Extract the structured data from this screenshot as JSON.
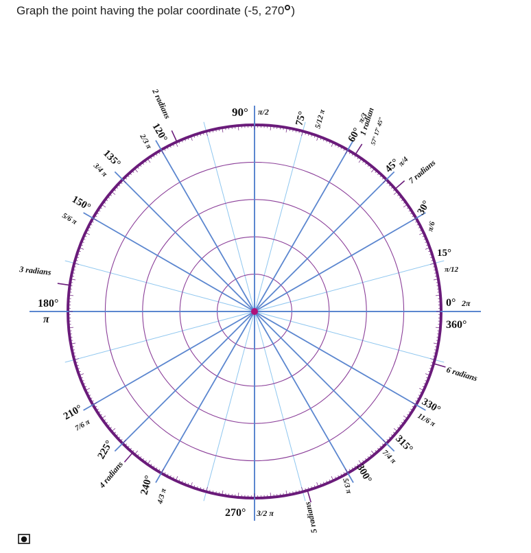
{
  "question": {
    "text_before": "Graph the point having the polar coordinate (-5, 270",
    "text_after": ")"
  },
  "colors": {
    "circle": "#8a3d98",
    "outer_circle": "#6a1b7a",
    "major_axis": "#5b86cf",
    "minor_axis": "#8ec6ef",
    "center_point": "#b0127a",
    "radian_label": "#6a1b7a"
  },
  "grid": {
    "rings": 5,
    "minor_spokes_deg": [
      0,
      15,
      30,
      45,
      60,
      75,
      90,
      105,
      120,
      135,
      150,
      165,
      180,
      195,
      210,
      225,
      240,
      255,
      270,
      285,
      300,
      315,
      330,
      345
    ],
    "major_spokes_deg": [
      0,
      30,
      45,
      60,
      90,
      120,
      135,
      150,
      180,
      210,
      225,
      240,
      270,
      300,
      315,
      330
    ]
  },
  "angle_labels": [
    {
      "deg": "90°",
      "rad": "π/2"
    },
    {
      "deg": "75°",
      "rad": "5/12 π"
    },
    {
      "deg": "60°",
      "rad": "π/3"
    },
    {
      "deg": "45°",
      "rad": "π/4"
    },
    {
      "deg": "30°",
      "rad": "π/6"
    },
    {
      "deg": "15°",
      "rad": "π/12"
    },
    {
      "deg": "0°",
      "rad": "2π"
    },
    {
      "deg": "360°",
      "rad": ""
    },
    {
      "deg": "330°",
      "rad": "11/6 π"
    },
    {
      "deg": "315°",
      "rad": "7/4 π"
    },
    {
      "deg": "300°",
      "rad": "5/3 π"
    },
    {
      "deg": "270°",
      "rad": "3/2 π"
    },
    {
      "deg": "240°",
      "rad": "4/3 π"
    },
    {
      "deg": "225°",
      "rad": ""
    },
    {
      "deg": "210°",
      "rad": "7/6 π"
    },
    {
      "deg": "180°",
      "rad": "π"
    },
    {
      "deg": "150°",
      "rad": "5/6 π"
    },
    {
      "deg": "135°",
      "rad": "3/4 π"
    },
    {
      "deg": "120°",
      "rad": "2/3 π"
    }
  ],
  "radian_markers": [
    {
      "label": "1 radian",
      "sub": "57° 17′ 45″"
    },
    {
      "label": "2 radians"
    },
    {
      "label": "3 radians"
    },
    {
      "label": "4 radians"
    },
    {
      "label": "5 radians"
    },
    {
      "label": "6 radians"
    },
    {
      "label": "7 radians"
    }
  ],
  "corner_icon": "graph-tool-icon"
}
